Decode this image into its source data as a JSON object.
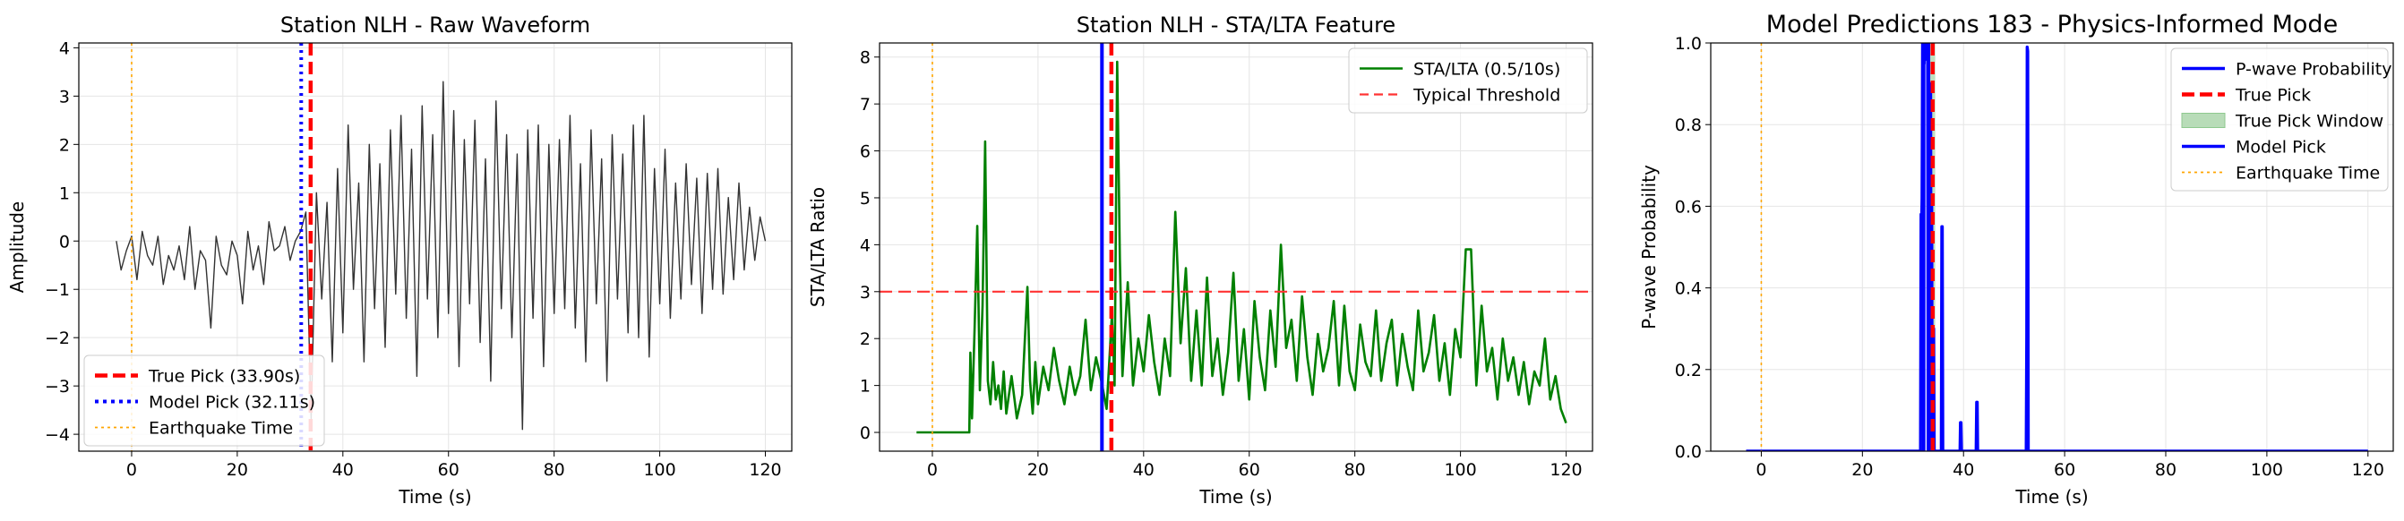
{
  "figure": {
    "colors": {
      "waveform": "#333333",
      "true_pick": "#ff0000",
      "model_pick": "#0000ff",
      "earthquake_time": "#ffa500",
      "sta_lta": "#008000",
      "threshold": "#ff3333",
      "probability": "#0000ff",
      "window_fill": "#b8dcb8",
      "grid": "#e5e5e5"
    }
  },
  "chart_data": [
    {
      "type": "line",
      "title": "Station NLH - Raw Waveform",
      "xlabel": "Time (s)",
      "ylabel": "Amplitude",
      "xlim": [
        -10,
        125
      ],
      "ylim": [
        -4.35,
        4.1
      ],
      "xticks": [
        0,
        20,
        40,
        60,
        80,
        100,
        120
      ],
      "yticks": [
        -4,
        -3,
        -2,
        -1,
        0,
        1,
        2,
        3,
        4
      ],
      "grid": true,
      "legend": {
        "placement": "lower-left",
        "entries": [
          "True Pick (33.90s)",
          "Model Pick (32.11s)",
          "Earthquake Time"
        ]
      },
      "vlines": [
        {
          "name": "True Pick (33.90s)",
          "x": 33.9,
          "style": "dashed",
          "color": "#ff0000"
        },
        {
          "name": "Model Pick (32.11s)",
          "x": 32.11,
          "style": "dotted",
          "color": "#0000ff"
        },
        {
          "name": "Earthquake Time",
          "x": 0,
          "style": "dotted",
          "color": "#ffa500"
        }
      ],
      "series": [
        {
          "x": [
            -2.9,
            -2,
            -1,
            0,
            1,
            2,
            3,
            4,
            5,
            6,
            7,
            8,
            9,
            10,
            11,
            12,
            13,
            14,
            15,
            16,
            17,
            18,
            19,
            20,
            21,
            22,
            23,
            24,
            25,
            26,
            27,
            28,
            29,
            30,
            31,
            32,
            33,
            34,
            35,
            36,
            37,
            38,
            39,
            40,
            41,
            42,
            43,
            44,
            45,
            46,
            47,
            48,
            49,
            50,
            51,
            52,
            53,
            54,
            55,
            56,
            57,
            58,
            59,
            60,
            61,
            62,
            63,
            64,
            65,
            66,
            67,
            68,
            69,
            70,
            71,
            72,
            73,
            74,
            75,
            76,
            77,
            78,
            79,
            80,
            81,
            82,
            83,
            84,
            85,
            86,
            87,
            88,
            89,
            90,
            91,
            92,
            93,
            94,
            95,
            96,
            97,
            98,
            99,
            100,
            101,
            102,
            103,
            104,
            105,
            106,
            107,
            108,
            109,
            110,
            111,
            112,
            113,
            114,
            115,
            116,
            117,
            118,
            119,
            120
          ],
          "values": [
            0.0,
            -0.6,
            -0.2,
            0.1,
            -0.8,
            0.2,
            -0.3,
            -0.5,
            0.1,
            -0.9,
            -0.3,
            -0.6,
            -0.1,
            -0.8,
            0.3,
            -1.0,
            -0.2,
            -0.4,
            -1.8,
            0.1,
            -0.5,
            -0.7,
            0.0,
            -0.3,
            -1.3,
            0.2,
            -0.6,
            -0.1,
            -0.9,
            0.4,
            -0.2,
            -0.1,
            0.3,
            -0.4,
            0.0,
            0.2,
            0.6,
            -3.7,
            1.0,
            -1.2,
            0.8,
            -2.5,
            1.5,
            -1.9,
            2.4,
            -1.0,
            1.2,
            -2.5,
            2.0,
            -1.4,
            1.6,
            -2.2,
            2.3,
            -1.1,
            2.6,
            -1.6,
            1.9,
            -2.8,
            2.8,
            -1.2,
            2.2,
            -2.0,
            3.3,
            -1.5,
            2.7,
            -2.6,
            2.1,
            -1.3,
            2.5,
            -2.1,
            1.7,
            -2.9,
            2.9,
            -1.4,
            2.2,
            -2.0,
            1.8,
            -3.9,
            2.3,
            -1.6,
            2.4,
            -2.6,
            2.0,
            -1.5,
            2.1,
            -1.4,
            2.6,
            -1.8,
            1.6,
            -2.5,
            2.3,
            -1.3,
            1.7,
            -2.9,
            2.2,
            -1.2,
            1.8,
            -1.9,
            2.4,
            -2.0,
            2.6,
            -2.4,
            1.5,
            -1.3,
            1.9,
            -1.6,
            1.2,
            -1.2,
            1.6,
            -0.9,
            1.3,
            -1.5,
            1.4,
            -1.0,
            1.5,
            -1.1,
            0.9,
            -0.8,
            1.2,
            -0.6,
            0.7,
            -0.4,
            0.5,
            0.0
          ]
        }
      ]
    },
    {
      "type": "line",
      "title": "Station NLH - STA/LTA Feature",
      "xlabel": "Time (s)",
      "ylabel": "STA/LTA Ratio",
      "xlim": [
        -10,
        125
      ],
      "ylim": [
        -0.4,
        8.3
      ],
      "xticks": [
        0,
        20,
        40,
        60,
        80,
        100,
        120
      ],
      "yticks": [
        0,
        1,
        2,
        3,
        4,
        5,
        6,
        7,
        8
      ],
      "grid": true,
      "legend": {
        "placement": "top-right",
        "entries": [
          "STA/LTA (0.5/10s)",
          "Typical Threshold"
        ]
      },
      "hlines": [
        {
          "name": "Typical Threshold",
          "y": 3,
          "style": "dashed",
          "color": "#ff3333"
        }
      ],
      "vlines": [
        {
          "x": 32.11,
          "style": "solid",
          "color": "#0000ff"
        },
        {
          "x": 33.9,
          "style": "dashed",
          "color": "#ff0000"
        },
        {
          "x": 0,
          "style": "dotted",
          "color": "#ffa500"
        }
      ],
      "series": [
        {
          "name": "STA/LTA (0.5/10s)",
          "x": [
            -3,
            7,
            7.2,
            7.5,
            8,
            8.5,
            9,
            9.5,
            10,
            10.5,
            11,
            11.5,
            12,
            12.5,
            13,
            13.5,
            14,
            15,
            16,
            17,
            18,
            18.5,
            19,
            19.5,
            20,
            21,
            22,
            23,
            24,
            25,
            26,
            27,
            28,
            29,
            30,
            31,
            32,
            33,
            34,
            34.5,
            35,
            35.5,
            36,
            37,
            38,
            39,
            40,
            41,
            42,
            43,
            44,
            45,
            46,
            47,
            48,
            49,
            50,
            51,
            52,
            53,
            54,
            55,
            56,
            57,
            58,
            59,
            60,
            61,
            62,
            63,
            64,
            65,
            66,
            67,
            68,
            69,
            70,
            71,
            72,
            73,
            74,
            75,
            76,
            77,
            78,
            79,
            80,
            81,
            82,
            83,
            84,
            85,
            86,
            87,
            88,
            89,
            90,
            91,
            92,
            93,
            94,
            95,
            96,
            97,
            98,
            99,
            100,
            101,
            102,
            103,
            104,
            105,
            106,
            107,
            108,
            109,
            110,
            111,
            112,
            113,
            114,
            115,
            116,
            117,
            118,
            119,
            120
          ],
          "values": [
            0,
            0,
            1.7,
            0.3,
            2.2,
            4.4,
            0.9,
            2.7,
            6.2,
            1.1,
            0.6,
            1.5,
            0.7,
            1.0,
            0.5,
            1.3,
            0.4,
            1.2,
            0.3,
            0.8,
            3.1,
            1.1,
            0.4,
            1.5,
            0.6,
            1.4,
            0.9,
            1.8,
            1.1,
            0.6,
            1.4,
            0.8,
            1.2,
            2.4,
            0.9,
            1.6,
            1.1,
            0.5,
            2.5,
            1.0,
            7.9,
            3.7,
            1.2,
            3.2,
            1.0,
            2.0,
            1.3,
            2.5,
            1.5,
            0.8,
            2.0,
            1.2,
            4.7,
            1.9,
            3.5,
            1.1,
            2.6,
            1.0,
            3.3,
            1.2,
            2.0,
            0.8,
            1.7,
            3.4,
            1.1,
            2.2,
            0.7,
            2.8,
            1.6,
            0.9,
            2.6,
            1.4,
            4.0,
            1.8,
            2.4,
            1.1,
            2.9,
            1.6,
            0.8,
            2.1,
            1.3,
            1.8,
            2.8,
            1.0,
            2.7,
            1.3,
            0.9,
            2.3,
            1.5,
            1.2,
            2.6,
            1.1,
            1.9,
            2.4,
            1.0,
            2.1,
            1.4,
            0.9,
            2.6,
            1.3,
            1.7,
            2.5,
            1.1,
            1.9,
            0.8,
            2.2,
            1.6,
            3.9,
            3.9,
            1.0,
            2.7,
            1.3,
            1.8,
            0.7,
            2.0,
            1.1,
            1.6,
            0.8,
            1.5,
            0.6,
            1.3,
            1.0,
            2.0,
            0.7,
            1.2,
            0.5,
            0.2
          ]
        }
      ]
    },
    {
      "type": "line",
      "title": "Model Predictions 183 - Physics-Informed Mode",
      "xlabel": "Time (s)",
      "ylabel": "P-wave Probability",
      "xlim": [
        -10,
        125
      ],
      "ylim": [
        0,
        1
      ],
      "xticks": [
        0,
        20,
        40,
        60,
        80,
        100,
        120
      ],
      "yticks": [
        0.0,
        0.2,
        0.4,
        0.6,
        0.8,
        1.0
      ],
      "grid": true,
      "legend": {
        "placement": "top-right",
        "entries": [
          "P-wave Probability",
          "True Pick",
          "True Pick Window",
          "Model Pick",
          "Earthquake Time"
        ]
      },
      "vlines": [
        {
          "name": "True Pick",
          "x": 33.9,
          "style": "dashed",
          "color": "#ff0000"
        },
        {
          "name": "Model Pick",
          "x": 32.11,
          "style": "solid",
          "color": "#0000ff"
        },
        {
          "name": "Earthquake Time",
          "x": 0,
          "style": "dotted",
          "color": "#ffa500"
        }
      ],
      "spans": [
        {
          "name": "True Pick Window",
          "x0": 33.4,
          "x1": 34.4
        }
      ],
      "series": [
        {
          "name": "P-wave Probability",
          "x": [
            -3,
            31.5,
            31.6,
            31.7,
            31.8,
            31.9,
            32.0,
            32.1,
            32.2,
            32.3,
            32.4,
            32.5,
            32.6,
            32.7,
            32.8,
            32.9,
            33.0,
            33.1,
            33.2,
            33.3,
            33.4,
            33.5,
            33.6,
            33.7,
            33.8,
            33.9,
            34.0,
            34.1,
            34.2,
            34.3,
            35.6,
            35.7,
            35.8,
            35.9,
            36.0,
            39.3,
            39.4,
            39.5,
            39.6,
            42.5,
            42.6,
            42.7,
            42.8,
            52.4,
            52.5,
            52.6,
            52.7,
            52.8,
            52.9,
            53.0,
            120
          ],
          "values": [
            0,
            0,
            0.58,
            0.55,
            0.62,
            1.0,
            0.9,
            1.0,
            0.95,
            1.0,
            0.97,
            1.0,
            0.96,
            1.0,
            0.98,
            1.0,
            0.0,
            1.0,
            0.0,
            0.5,
            0.0,
            0.9,
            0.0,
            0.6,
            0.0,
            0.2,
            0.0,
            0.3,
            0.0,
            0,
            0,
            0.55,
            0.55,
            0.0,
            0,
            0,
            0.07,
            0.07,
            0,
            0,
            0.12,
            0.12,
            0,
            0,
            0.28,
            0.99,
            0.98,
            0.0,
            0,
            0,
            0
          ]
        }
      ]
    }
  ]
}
